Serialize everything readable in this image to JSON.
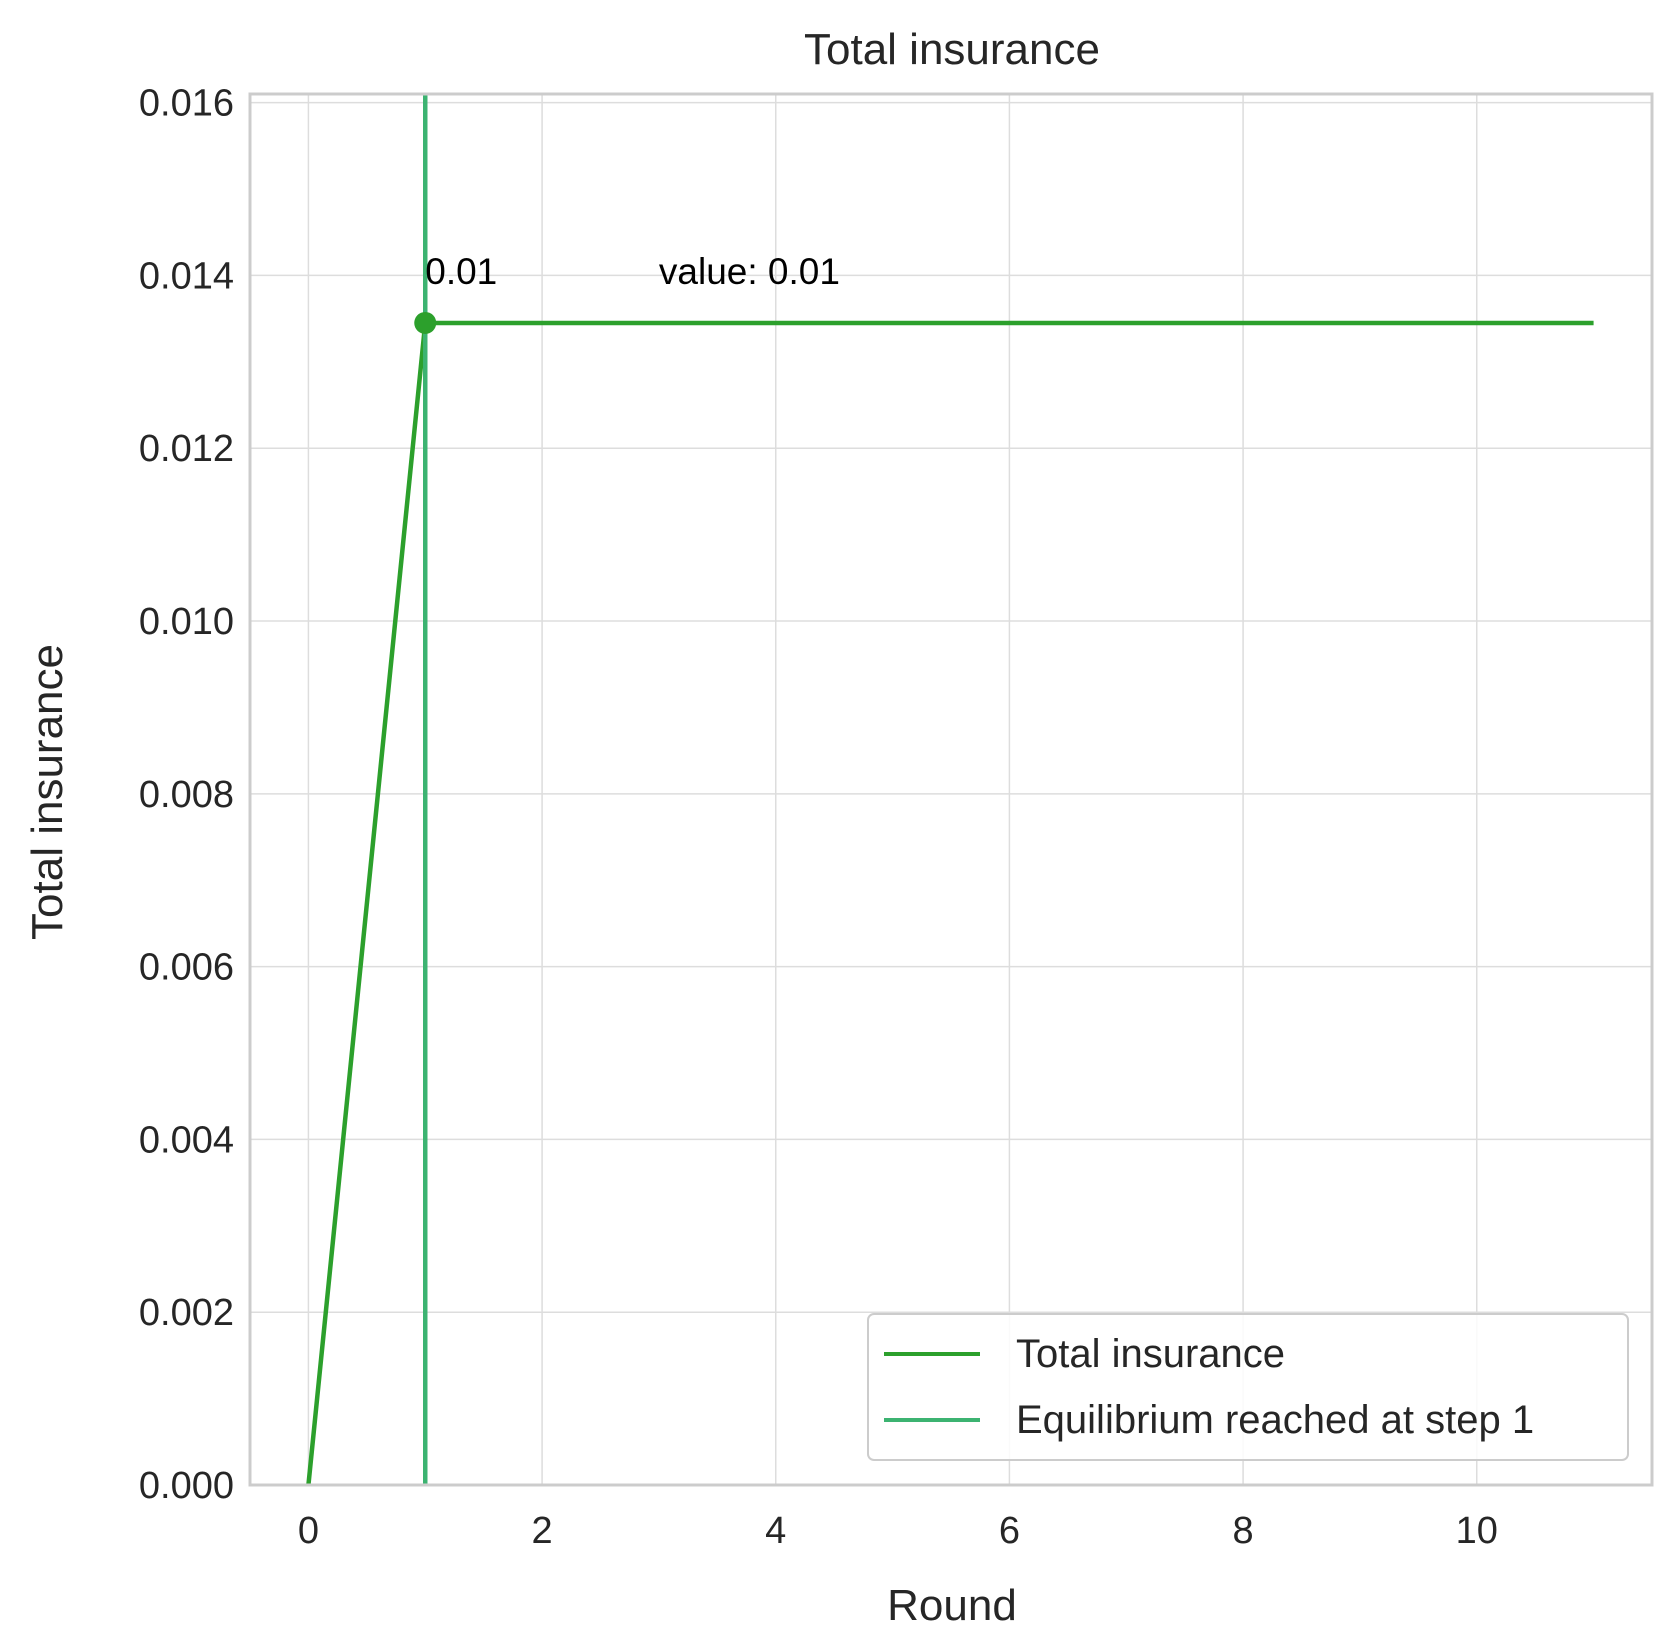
{
  "chart_data": {
    "type": "line",
    "title": "Total insurance",
    "xlabel": "Round",
    "ylabel": "Total insurance",
    "xlim": [
      -0.5,
      11.5
    ],
    "ylim": [
      0,
      0.0161
    ],
    "xticks": [
      0,
      2,
      4,
      6,
      8,
      10
    ],
    "xtick_labels": [
      "0",
      "2",
      "4",
      "6",
      "8",
      "10"
    ],
    "yticks": [
      0,
      0.002,
      0.004,
      0.006,
      0.008,
      0.01,
      0.012,
      0.014,
      0.016
    ],
    "ytick_labels": [
      "0.000",
      "0.002",
      "0.004",
      "0.006",
      "0.008",
      "0.010",
      "0.012",
      "0.014",
      "0.016"
    ],
    "grid": true,
    "series": [
      {
        "name": "Total insurance",
        "color": "#2ca02c",
        "x": [
          0,
          1,
          2,
          3,
          4,
          5,
          6,
          7,
          8,
          9,
          10,
          11
        ],
        "values": [
          0,
          0.01345,
          0.01345,
          0.01345,
          0.01345,
          0.01345,
          0.01345,
          0.01345,
          0.01345,
          0.01345,
          0.01345,
          0.01345
        ]
      }
    ],
    "vline": {
      "name": "Equilibrium reached at step 1",
      "x": 1,
      "color": "#3cb371"
    },
    "marker": {
      "x": 1,
      "y": 0.01345,
      "color": "#2ca02c"
    },
    "annotations": [
      {
        "text": "0.01",
        "x": 1,
        "y": 0.01395
      },
      {
        "text": "value: 0.01",
        "x": 3,
        "y": 0.01395
      }
    ],
    "legend_placement": "lower-right"
  }
}
